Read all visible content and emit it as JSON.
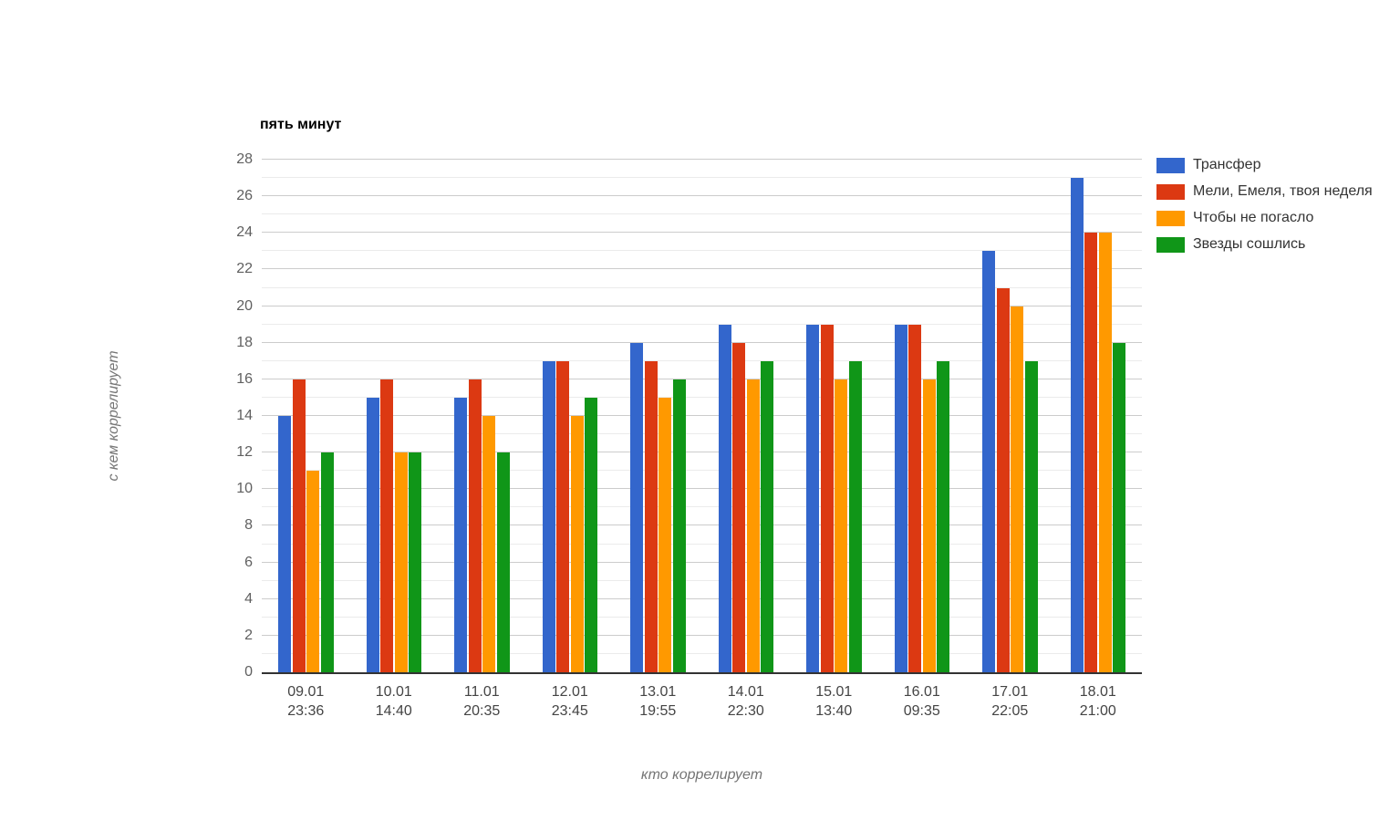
{
  "page": {
    "background": "#ffffff"
  },
  "chart_data": {
    "type": "bar",
    "title": "пять минут",
    "xlabel": "кто коррелирует",
    "ylabel": "с кем коррелирует",
    "categories": [
      [
        "09.01",
        "23:36"
      ],
      [
        "10.01",
        "14:40"
      ],
      [
        "11.01",
        "20:35"
      ],
      [
        "12.01",
        "23:45"
      ],
      [
        "13.01",
        "19:55"
      ],
      [
        "14.01",
        "22:30"
      ],
      [
        "15.01",
        "13:40"
      ],
      [
        "16.01",
        "09:35"
      ],
      [
        "17.01",
        "22:05"
      ],
      [
        "18.01",
        "21:00"
      ]
    ],
    "series": [
      {
        "name": "Трансфер",
        "color": "#3366CC",
        "values": [
          14,
          15,
          15,
          17,
          18,
          19,
          19,
          19,
          23,
          27
        ]
      },
      {
        "name": "Мели, Емеля, твоя неделя",
        "color": "#DC3912",
        "values": [
          16,
          16,
          16,
          17,
          17,
          18,
          19,
          19,
          21,
          24
        ]
      },
      {
        "name": "Чтобы не погасло",
        "color": "#FF9900",
        "values": [
          11,
          12,
          14,
          14,
          15,
          16,
          16,
          16,
          20,
          24
        ]
      },
      {
        "name": "Звезды сошлись",
        "color": "#109618",
        "values": [
          12,
          12,
          12,
          15,
          16,
          17,
          17,
          17,
          17,
          18
        ]
      }
    ],
    "ylim": [
      0,
      28
    ],
    "y_ticks": [
      0,
      2,
      4,
      6,
      8,
      10,
      12,
      14,
      16,
      18,
      20,
      22,
      24,
      26,
      28
    ],
    "minor_grid_step": 1,
    "grid": true,
    "legend_position": "right",
    "colors": {
      "major_gridline": "#cccccc",
      "minor_gridline": "#ebebeb",
      "baseline": "#333333"
    }
  }
}
